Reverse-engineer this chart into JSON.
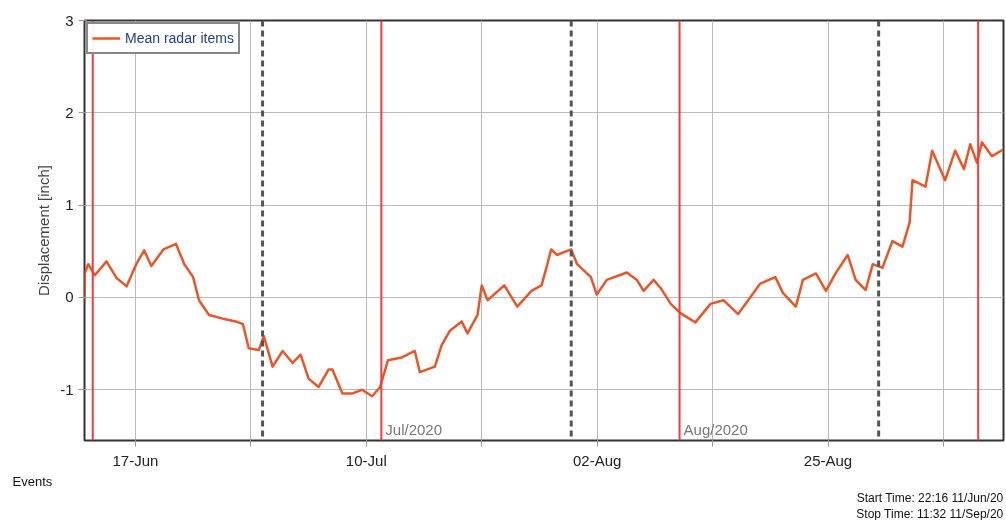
{
  "chart_data": {
    "type": "line",
    "ylabel": "Displacement [inch]",
    "xlim": [
      "2020-06-11T22:16",
      "2020-09-11T11:32"
    ],
    "ylim": [
      -1.55,
      3
    ],
    "yticks": [
      -1,
      0,
      1,
      2,
      3
    ],
    "xticks": [
      {
        "value": "2020-06-17",
        "label": "17-Jun"
      },
      {
        "value": "2020-06-28T12:00",
        "label": null
      },
      {
        "value": "2020-07-10",
        "label": "10-Jul"
      },
      {
        "value": "2020-07-21T12:00",
        "label": null
      },
      {
        "value": "2020-08-02",
        "label": "02-Aug"
      },
      {
        "value": "2020-08-13T12:00",
        "label": null
      },
      {
        "value": "2020-08-25",
        "label": "25-Aug"
      },
      {
        "value": "2020-09-05T12:00",
        "label": null
      }
    ],
    "grid": true,
    "legend": "top left",
    "marker": "none",
    "line_style": "solid",
    "series": [
      {
        "name": "Mean radar items",
        "color": "#e8572a",
        "x": [
          "2020-06-11T22:16",
          "2020-06-11T23:00",
          "2020-06-12T07:00",
          "2020-06-12T23:00",
          "2020-06-14T03:00",
          "2020-06-15T03:00",
          "2020-06-16T03:00",
          "2020-06-17T02:00",
          "2020-06-17T21:00",
          "2020-06-18T14:00",
          "2020-06-19T19:00",
          "2020-06-21T01:00",
          "2020-06-21T21:00",
          "2020-06-22T18:00",
          "2020-06-23T08:00",
          "2020-06-24T08:00",
          "2020-06-25T17:00",
          "2020-06-27T00:00",
          "2020-06-27T17:00",
          "2020-06-28T07:00",
          "2020-06-29T07:00",
          "2020-06-29T19:00",
          "2020-06-30T16:00",
          "2020-07-01T16:00",
          "2020-07-02T16:00",
          "2020-07-03T11:00",
          "2020-07-04T06:00",
          "2020-07-05T06:00",
          "2020-07-06T06:00",
          "2020-07-06T15:00",
          "2020-07-07T15:00",
          "2020-07-08T15:00",
          "2020-07-09T14:00",
          "2020-07-10T14:00",
          "2020-07-11T09:00",
          "2020-07-12T04:00",
          "2020-07-13T13:00",
          "2020-07-14T20:00",
          "2020-07-15T08:00",
          "2020-07-16T20:00",
          "2020-07-17T12:00",
          "2020-07-18T08:00",
          "2020-07-19T12:00",
          "2020-07-20T02:00",
          "2020-07-21T02:00",
          "2020-07-21T12:00",
          "2020-07-22T02:00",
          "2020-07-23T18:00",
          "2020-07-25T01:00",
          "2020-07-26T11:00",
          "2020-07-27T11:00",
          "2020-07-28T01:00",
          "2020-07-28T10:00",
          "2020-07-29T00:00",
          "2020-07-30T10:00",
          "2020-07-31T00:00",
          "2020-08-01T09:00",
          "2020-08-01T23:00",
          "2020-08-02T23:00",
          "2020-08-04T23:00",
          "2020-08-05T23:00",
          "2020-08-06T15:00",
          "2020-08-07T15:00",
          "2020-08-08T08:00",
          "2020-08-09T08:00",
          "2020-08-10T07:00",
          "2020-08-11T19:00",
          "2020-08-13T07:00",
          "2020-08-14T14:00",
          "2020-08-16T01:00",
          "2020-08-17T06:00",
          "2020-08-18T06:00",
          "2020-08-19T18:00",
          "2020-08-20T12:00",
          "2020-08-21T19:00",
          "2020-08-22T12:00",
          "2020-08-23T19:00",
          "2020-08-24T19:00",
          "2020-08-25T18:00",
          "2020-08-26T23:00",
          "2020-08-27T18:00",
          "2020-08-28T18:00",
          "2020-08-29T11:00",
          "2020-08-30T10:00",
          "2020-08-31T10:00",
          "2020-09-01T10:00",
          "2020-09-02T03:00",
          "2020-09-02T10:00",
          "2020-09-03T17:00",
          "2020-09-04T09:00",
          "2020-09-05T16:00",
          "2020-09-06T16:00",
          "2020-09-07T13:00",
          "2020-09-08T04:00",
          "2020-09-08T20:00",
          "2020-09-09T08:00",
          "2020-09-10T08:00",
          "2020-09-11T10:00"
        ],
        "values": [
          -0.03,
          0.26,
          0.36,
          0.24,
          0.39,
          0.21,
          0.12,
          0.36,
          0.51,
          0.34,
          0.52,
          0.58,
          0.36,
          0.22,
          -0.03,
          -0.19,
          -0.23,
          -0.26,
          -0.29,
          -0.55,
          -0.57,
          -0.42,
          -0.75,
          -0.58,
          -0.71,
          -0.62,
          -0.88,
          -0.97,
          -0.78,
          -0.78,
          -1.04,
          -1.04,
          -1.0,
          -1.07,
          -0.97,
          -0.68,
          -0.65,
          -0.58,
          -0.81,
          -0.75,
          -0.52,
          -0.36,
          -0.26,
          -0.39,
          -0.19,
          0.13,
          -0.03,
          0.13,
          -0.1,
          0.07,
          0.13,
          0.36,
          0.52,
          0.46,
          0.52,
          0.36,
          0.22,
          0.03,
          0.19,
          0.27,
          0.19,
          0.07,
          0.19,
          0.1,
          -0.07,
          -0.17,
          -0.27,
          -0.07,
          -0.03,
          -0.18,
          0.0,
          0.15,
          0.22,
          0.05,
          -0.1,
          0.19,
          0.26,
          0.07,
          0.26,
          0.46,
          0.19,
          0.08,
          0.36,
          0.32,
          0.61,
          0.55,
          0.81,
          1.27,
          1.2,
          1.59,
          1.27,
          1.59,
          1.39,
          1.66,
          1.46,
          1.68,
          1.53,
          1.6
        ]
      }
    ],
    "ref_lines": [
      {
        "axis": "x",
        "value": "2020-06-12T18:00",
        "color": "#f03c3c",
        "line_style": "solid"
      },
      {
        "axis": "x",
        "value": "2020-06-29T16:00",
        "color": "#555555",
        "line_style": "dashed"
      },
      {
        "axis": "x",
        "value": "2020-07-11T12:00",
        "label": "Jul/2020",
        "color": "#f03c3c",
        "line_style": "solid"
      },
      {
        "axis": "x",
        "value": "2020-07-30T10:00",
        "color": "#555555",
        "line_style": "dashed"
      },
      {
        "axis": "x",
        "value": "2020-08-10T05:00",
        "label": "Aug/2020",
        "color": "#f03c3c",
        "line_style": "solid"
      },
      {
        "axis": "x",
        "value": "2020-08-30T01:00",
        "color": "#555555",
        "line_style": "dashed"
      },
      {
        "axis": "x",
        "value": "2020-09-08T23:00",
        "color": "#f03c3c",
        "line_style": "solid"
      }
    ],
    "annotations": [
      "Events",
      "Start Time: 22:16 11/Jun/20",
      "Stop Time: 11:32 11/Sep/20"
    ]
  }
}
